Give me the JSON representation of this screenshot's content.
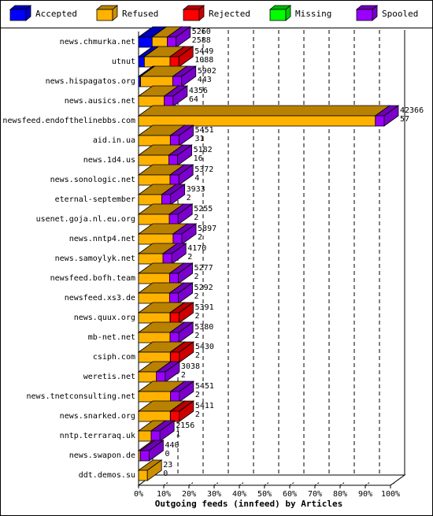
{
  "legend": [
    {
      "name": "Accepted",
      "color": "#0000ff"
    },
    {
      "name": "Refused",
      "color": "#ffb300"
    },
    {
      "name": "Rejected",
      "color": "#ff0000"
    },
    {
      "name": "Missing",
      "color": "#00ff00"
    },
    {
      "name": "Spooled",
      "color": "#9900ff"
    }
  ],
  "chart_data": {
    "type": "bar",
    "orientation": "horizontal",
    "stacked": true,
    "xlabel": "Outgoing feeds (innfeed) by Articles",
    "ylabel": "",
    "xlim": [
      0,
      100
    ],
    "x_unit": "%",
    "ticks": [
      "0%",
      "10%",
      "20%",
      "30%",
      "40%",
      "50%",
      "60%",
      "70%",
      "80%",
      "90%",
      "100%"
    ],
    "grid": true,
    "legend_position": "top",
    "categories": [
      "news.chmurka.net",
      "utnut",
      "news.hispagatos.org",
      "news.ausics.net",
      "newsfeed.endofthelinebbs.com",
      "aid.in.ua",
      "news.1d4.us",
      "news.sonologic.net",
      "eternal-september",
      "usenet.goja.nl.eu.org",
      "news.nntp4.net",
      "news.samoylyk.net",
      "newsfeed.bofh.team",
      "newsfeed.xs3.de",
      "news.quux.org",
      "mb-net.net",
      "csiph.com",
      "weretis.net",
      "news.tnetconsulting.net",
      "news.snarked.org",
      "nntp.terraraq.uk",
      "news.swapon.de",
      "ddt.demos.su"
    ],
    "labels_top": [
      "5260",
      "5449",
      "5902",
      "4356",
      "42366",
      "5451",
      "5182",
      "5372",
      "3933",
      "5255",
      "5897",
      "4170",
      "5277",
      "5292",
      "5391",
      "5380",
      "5430",
      "3038",
      "5451",
      "5411",
      "2156",
      "440",
      "23"
    ],
    "labels_bottom": [
      "2588",
      "1088",
      "443",
      "64",
      "57",
      "31",
      "16",
      "4",
      "2",
      "2",
      "2",
      "2",
      "2",
      "2",
      "2",
      "2",
      "2",
      "2",
      "2",
      "2",
      "1",
      "0",
      "0"
    ],
    "series": [
      {
        "name": "Accepted",
        "values": [
          5.4,
          2.3,
          0.8,
          0,
          0,
          0,
          0,
          0,
          0,
          0,
          0,
          0,
          0,
          0,
          0,
          0,
          0,
          0,
          0,
          0,
          0,
          0,
          0
        ]
      },
      {
        "name": "Refused",
        "values": [
          6.0,
          10.2,
          12.8,
          10.2,
          94.0,
          12.6,
          12.0,
          12.5,
          9.2,
          12.2,
          13.7,
          9.7,
          12.3,
          12.3,
          12.5,
          12.5,
          12.6,
          7.1,
          12.7,
          12.6,
          5.0,
          0.7,
          0
        ]
      },
      {
        "name": "Rejected",
        "values": [
          0,
          0,
          0,
          0,
          0,
          0,
          0,
          0,
          0,
          0,
          0,
          0,
          0,
          0,
          0.1,
          0,
          0.1,
          0,
          0,
          0.1,
          0,
          0,
          0
        ]
      },
      {
        "name": "Missing",
        "values": [
          0,
          0,
          0,
          0,
          0,
          0,
          0,
          0,
          0,
          0,
          0,
          0,
          0,
          0,
          0,
          0,
          0,
          0,
          0,
          0,
          0,
          0,
          0
        ]
      },
      {
        "name": "Spooled",
        "values": [
          0,
          0,
          0,
          0,
          0,
          0,
          0,
          0,
          0,
          0,
          0,
          0,
          0,
          0,
          0,
          0,
          0,
          0,
          0,
          0,
          0,
          0,
          0
        ]
      }
    ],
    "end_cap_series": [
      "Spooled",
      "Rejected",
      "Spooled",
      "Spooled",
      "Spooled",
      "Spooled",
      "Spooled",
      "Spooled",
      "Spooled",
      "Spooled",
      "Spooled",
      "Spooled",
      "Spooled",
      "Spooled",
      "Rejected",
      "Spooled",
      "Rejected",
      "Spooled",
      "Spooled",
      "Rejected",
      "Spooled",
      "Spooled",
      "Refused"
    ]
  }
}
